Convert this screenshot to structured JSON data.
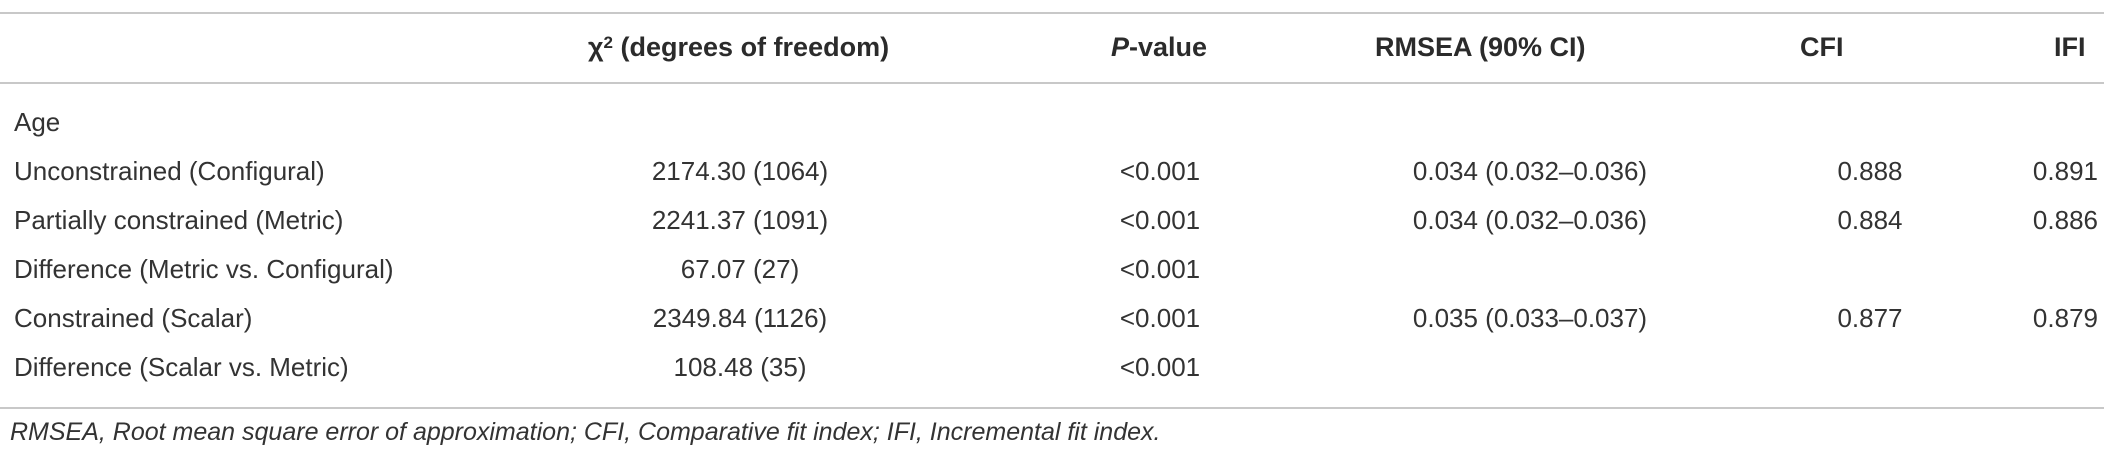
{
  "table": {
    "headers": {
      "label": "",
      "chi_prefix": "χ",
      "chi_sup": "2",
      "chi_suffix": " (degrees of freedom)",
      "p_italic": "P",
      "p_suffix": "-value",
      "rmsea": "RMSEA (90% CI)",
      "cfi": "CFI",
      "ifi": "IFI"
    },
    "rows": [
      {
        "label": "Age",
        "chi": "",
        "p": "",
        "rmsea": "",
        "cfi": "",
        "ifi": ""
      },
      {
        "label": "Unconstrained (Configural)",
        "chi": "2174.30 (1064)",
        "p": "<0.001",
        "rmsea": "0.034 (0.032–0.036)",
        "cfi": "0.888",
        "ifi": "0.891"
      },
      {
        "label": "Partially constrained (Metric)",
        "chi": "2241.37 (1091)",
        "p": "<0.001",
        "rmsea": "0.034 (0.032–0.036)",
        "cfi": "0.884",
        "ifi": "0.886"
      },
      {
        "label": "Difference (Metric vs. Configural)",
        "chi": "67.07 (27)",
        "p": "<0.001",
        "rmsea": "",
        "cfi": "",
        "ifi": ""
      },
      {
        "label": "Constrained (Scalar)",
        "chi": "2349.84 (1126)",
        "p": "<0.001",
        "rmsea": "0.035 (0.033–0.037)",
        "cfi": "0.877",
        "ifi": "0.879"
      },
      {
        "label": "Difference (Scalar vs. Metric)",
        "chi": "108.48 (35)",
        "p": "<0.001",
        "rmsea": "",
        "cfi": "",
        "ifi": ""
      }
    ],
    "footnote": "RMSEA, Root mean square error of approximation; CFI, Comparative fit index; IFI, Incremental fit index."
  }
}
